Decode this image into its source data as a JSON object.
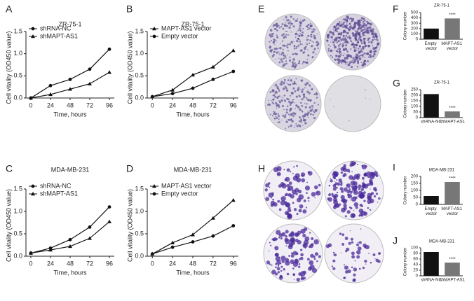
{
  "chart_data": [
    {
      "panel": "A",
      "type": "line",
      "title": "ZR-75-1",
      "x_label": "Time, hours",
      "y_label": "Cell vitality (OD450 value)",
      "x": [
        0,
        24,
        48,
        72,
        96
      ],
      "xlim": [
        -6,
        102
      ],
      "xticks": [
        0,
        24,
        48,
        72,
        96
      ],
      "ylim": [
        0,
        1.5
      ],
      "yticks": [
        {
          "value": 0,
          "label": "0.0"
        },
        0.5,
        {
          "value": 1,
          "label": "1.0"
        },
        1.5
      ],
      "legend": "upper left",
      "series": [
        {
          "name": "shRNA-NC",
          "color": "#111111",
          "marker": "circle",
          "values": [
            0,
            0.28,
            0.42,
            0.65,
            1.1
          ]
        },
        {
          "name": "shMAPT-AS1",
          "color": "#111111",
          "marker": "triangle",
          "values": [
            0,
            0.08,
            0.2,
            0.32,
            0.58
          ]
        }
      ]
    },
    {
      "panel": "B",
      "type": "line",
      "title": "ZR-75-1",
      "x_label": "Time, hours",
      "y_label": "Cell vitality (OD450 value)",
      "x": [
        0,
        24,
        48,
        72,
        96
      ],
      "xlim": [
        -6,
        102
      ],
      "xticks": [
        0,
        24,
        48,
        72,
        96
      ],
      "ylim": [
        0,
        1.5
      ],
      "yticks": [
        {
          "value": 0,
          "label": "0.0"
        },
        0.5,
        {
          "value": 1,
          "label": "1.0"
        },
        1.5
      ],
      "legend": "upper left",
      "series": [
        {
          "name": "MAPT-AS1 vector",
          "color": "#111111",
          "marker": "triangle",
          "values": [
            0.03,
            0.18,
            0.52,
            0.7,
            1.07
          ]
        },
        {
          "name": "Empty vector",
          "color": "#111111",
          "marker": "circle",
          "values": [
            0.03,
            0.1,
            0.22,
            0.42,
            0.6
          ]
        }
      ]
    },
    {
      "panel": "C",
      "type": "line",
      "title": "MDA-MB-231",
      "x_label": "Time, hours",
      "y_label": "Cell vitality (OD450 value)",
      "x": [
        0,
        24,
        48,
        72,
        96
      ],
      "xlim": [
        -6,
        102
      ],
      "xticks": [
        0,
        24,
        48,
        72,
        96
      ],
      "ylim": [
        0,
        1.5
      ],
      "yticks": [
        {
          "value": 0,
          "label": "0.0"
        },
        0.5,
        {
          "value": 1,
          "label": "1.0"
        },
        1.5
      ],
      "legend": "upper left",
      "series": [
        {
          "name": "shRNA-NC",
          "color": "#111111",
          "marker": "circle",
          "values": [
            0.07,
            0.18,
            0.37,
            0.65,
            1.1
          ]
        },
        {
          "name": "shMAPT-AS1",
          "color": "#111111",
          "marker": "triangle",
          "values": [
            0.07,
            0.14,
            0.22,
            0.4,
            0.77
          ]
        }
      ]
    },
    {
      "panel": "D",
      "type": "line",
      "title": "MDA-MB-231",
      "x_label": "Time, hours",
      "y_label": "Cell vitality (OD450 value)",
      "x": [
        0,
        24,
        48,
        72,
        96
      ],
      "xlim": [
        -6,
        102
      ],
      "xticks": [
        0,
        24,
        48,
        72,
        96
      ],
      "ylim": [
        0,
        1.5
      ],
      "yticks": [
        {
          "value": 0,
          "label": "0.0"
        },
        0.5,
        {
          "value": 1,
          "label": "1.0"
        },
        1.5
      ],
      "legend": "upper left",
      "series": [
        {
          "name": "MAPT-AS1 vector",
          "color": "#111111",
          "marker": "triangle",
          "values": [
            0.05,
            0.3,
            0.48,
            0.85,
            1.25
          ]
        },
        {
          "name": "Empty vector",
          "color": "#111111",
          "marker": "circle",
          "values": [
            0.05,
            0.2,
            0.32,
            0.45,
            0.68
          ]
        }
      ]
    },
    {
      "panel": "F",
      "type": "bar",
      "title": "ZR-75-1",
      "y_label": "Colony number",
      "categories": [
        "Empty vector",
        "MAPT-AS1 vector"
      ],
      "values": [
        200,
        390
      ],
      "colors": [
        "#111111",
        "#777777"
      ],
      "ylim": [
        0,
        500
      ],
      "yticks": [
        0,
        100,
        200,
        300,
        400,
        500
      ],
      "annotations": [
        {
          "text": "****",
          "x": "MAPT-AS1 vector"
        }
      ]
    },
    {
      "panel": "G",
      "type": "bar",
      "title": "ZR-75-1",
      "y_label": "Colony number",
      "categories": [
        "shRNA-NC",
        "shMAPT-AS1"
      ],
      "values": [
        210,
        55
      ],
      "colors": [
        "#111111",
        "#777777"
      ],
      "ylim": [
        0,
        250
      ],
      "yticks": [
        0,
        50,
        100,
        150,
        200,
        250
      ],
      "annotations": [
        {
          "text": "****",
          "x": "shMAPT-AS1"
        }
      ]
    },
    {
      "panel": "I",
      "type": "bar",
      "title": "MDA-MB-231",
      "y_label": "Colony number",
      "categories": [
        "Empty vector",
        "MAPT-AS1 vector"
      ],
      "values": [
        60,
        160
      ],
      "colors": [
        "#111111",
        "#777777"
      ],
      "ylim": [
        0,
        200
      ],
      "yticks": [
        0,
        50,
        100,
        150,
        200
      ],
      "annotations": [
        {
          "text": "****",
          "x": "MAPT-AS1 vector"
        }
      ]
    },
    {
      "panel": "J",
      "type": "bar",
      "title": "MDA-MB-231",
      "y_label": "Colony number",
      "categories": [
        "shRNA-NC",
        "shMAPT-AS1"
      ],
      "values": [
        85,
        47
      ],
      "colors": [
        "#111111",
        "#777777"
      ],
      "ylim": [
        0,
        100
      ],
      "yticks": [
        0,
        20,
        40,
        60,
        80,
        100
      ],
      "annotations": [
        {
          "text": "****",
          "x": "shMAPT-AS1"
        }
      ]
    }
  ],
  "image_panels": [
    {
      "panel": "E"
    },
    {
      "panel": "H"
    }
  ]
}
